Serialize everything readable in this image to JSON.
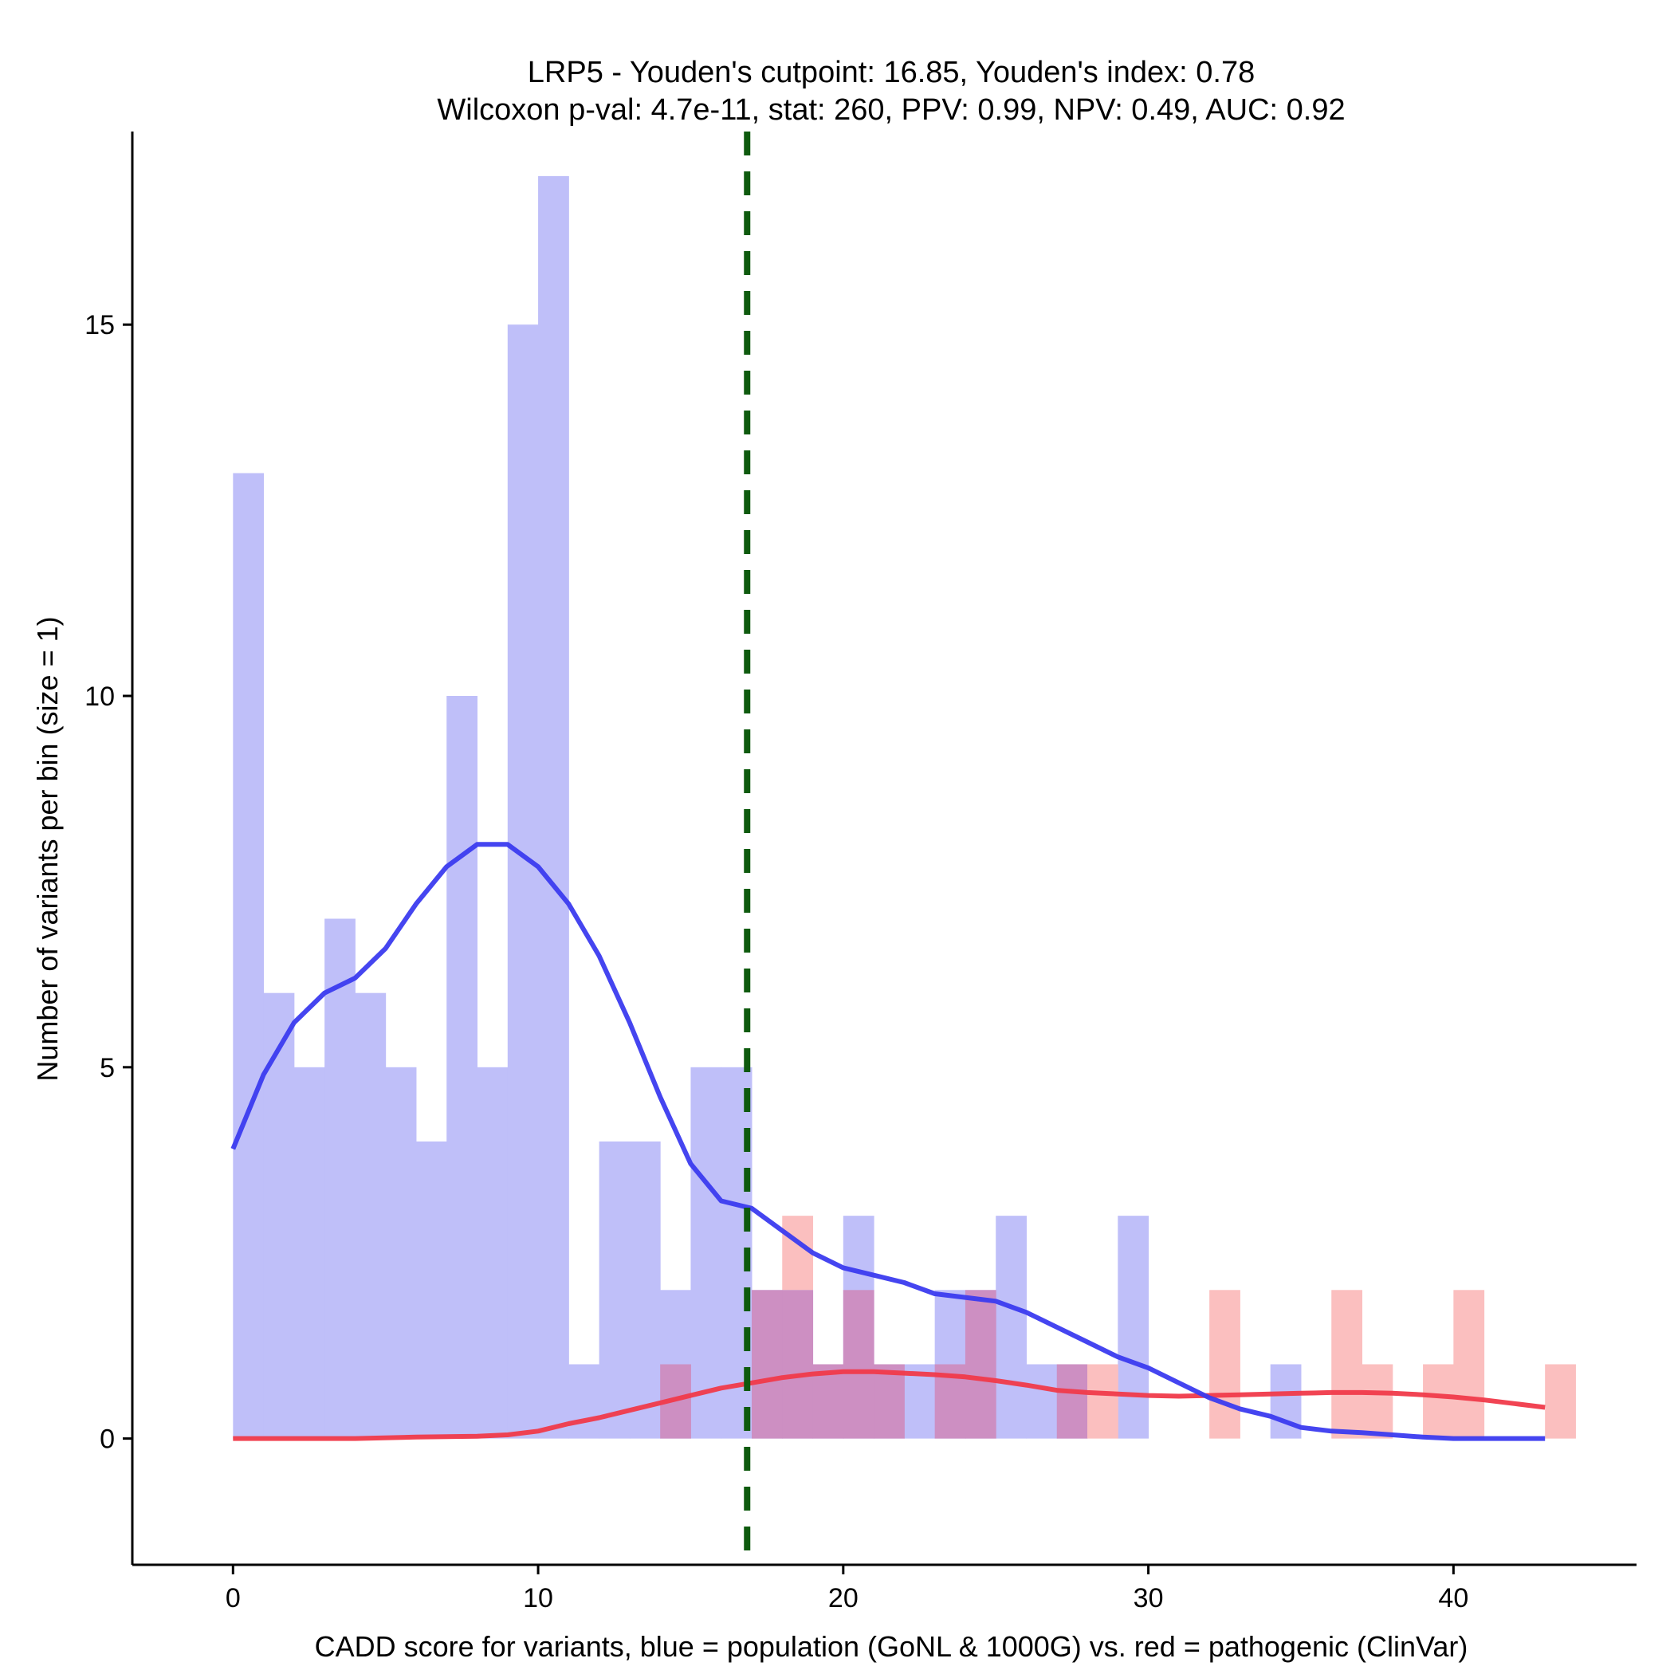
{
  "chart_data": {
    "type": "histogram",
    "title_line1": "LRP5 - Youden's cutpoint: 16.85, Youden's index: 0.78",
    "title_line2": "Wilcoxon p-val: 4.7e-11, stat: 260, PPV: 0.99, NPV: 0.49, AUC: 0.92",
    "xlabel": "CADD score for variants, blue = population (GoNL & 1000G) vs. red = pathogenic (ClinVar)",
    "ylabel": "Number of variants per bin (size = 1)",
    "xlim": [
      -3.3,
      46
    ],
    "ylim": [
      -1.7,
      17.6
    ],
    "x_ticks": [
      0,
      10,
      20,
      30,
      40
    ],
    "x_tick_labels": [
      "0",
      "10",
      "20",
      "30",
      "40"
    ],
    "y_ticks": [
      0,
      5,
      10,
      15
    ],
    "y_tick_labels": [
      "0",
      "5",
      "10",
      "15"
    ],
    "bin_size": 1,
    "cutpoint": 16.85,
    "colors": {
      "population_bar": "#bfbff9",
      "pathogenic_bar": "#fbbfbf",
      "overlap_bar": "#cd8fc2",
      "population_line": "#3b3bef",
      "pathogenic_line": "#f03a4a",
      "cutpoint_line": "#0e5a0e",
      "axis": "#000000"
    },
    "series": [
      {
        "name": "population (GoNL & 1000G)",
        "bins": [
          {
            "x0": 0,
            "count": 13
          },
          {
            "x0": 1,
            "count": 6
          },
          {
            "x0": 2,
            "count": 5
          },
          {
            "x0": 3,
            "count": 7
          },
          {
            "x0": 4,
            "count": 6
          },
          {
            "x0": 5,
            "count": 5
          },
          {
            "x0": 6,
            "count": 4
          },
          {
            "x0": 7,
            "count": 10
          },
          {
            "x0": 8,
            "count": 5
          },
          {
            "x0": 9,
            "count": 15
          },
          {
            "x0": 10,
            "count": 17
          },
          {
            "x0": 11,
            "count": 1
          },
          {
            "x0": 12,
            "count": 4
          },
          {
            "x0": 13,
            "count": 4
          },
          {
            "x0": 14,
            "count": 2
          },
          {
            "x0": 15,
            "count": 5
          },
          {
            "x0": 16,
            "count": 5
          },
          {
            "x0": 17,
            "count": 2
          },
          {
            "x0": 18,
            "count": 2
          },
          {
            "x0": 19,
            "count": 1
          },
          {
            "x0": 20,
            "count": 3
          },
          {
            "x0": 21,
            "count": 1
          },
          {
            "x0": 22,
            "count": 1
          },
          {
            "x0": 23,
            "count": 2
          },
          {
            "x0": 24,
            "count": 2
          },
          {
            "x0": 25,
            "count": 3
          },
          {
            "x0": 26,
            "count": 1
          },
          {
            "x0": 27,
            "count": 1
          },
          {
            "x0": 29,
            "count": 3
          },
          {
            "x0": 34,
            "count": 1
          }
        ],
        "density_curve": [
          [
            0,
            3.9
          ],
          [
            1,
            4.9
          ],
          [
            2,
            5.6
          ],
          [
            3,
            6.0
          ],
          [
            4,
            6.2
          ],
          [
            5,
            6.6
          ],
          [
            6,
            7.2
          ],
          [
            7,
            7.7
          ],
          [
            8,
            8.0
          ],
          [
            9,
            8.0
          ],
          [
            10,
            7.7
          ],
          [
            11,
            7.2
          ],
          [
            12,
            6.5
          ],
          [
            13,
            5.6
          ],
          [
            14,
            4.6
          ],
          [
            15,
            3.7
          ],
          [
            16,
            3.2
          ],
          [
            17,
            3.1
          ],
          [
            18,
            2.8
          ],
          [
            19,
            2.5
          ],
          [
            20,
            2.3
          ],
          [
            21,
            2.2
          ],
          [
            22,
            2.1
          ],
          [
            23,
            1.95
          ],
          [
            24,
            1.9
          ],
          [
            25,
            1.85
          ],
          [
            26,
            1.7
          ],
          [
            27,
            1.5
          ],
          [
            28,
            1.3
          ],
          [
            29,
            1.1
          ],
          [
            30,
            0.95
          ],
          [
            31,
            0.75
          ],
          [
            32,
            0.55
          ],
          [
            33,
            0.4
          ],
          [
            34,
            0.3
          ],
          [
            35,
            0.15
          ],
          [
            36,
            0.1
          ],
          [
            37,
            0.08
          ],
          [
            38,
            0.05
          ],
          [
            39,
            0.02
          ],
          [
            40,
            0.0
          ],
          [
            41,
            0.0
          ],
          [
            42,
            0.0
          ],
          [
            43,
            0.0
          ]
        ]
      },
      {
        "name": "pathogenic (ClinVar)",
        "bins": [
          {
            "x0": 14,
            "count": 1
          },
          {
            "x0": 17,
            "count": 2
          },
          {
            "x0": 18,
            "count": 3
          },
          {
            "x0": 19,
            "count": 1
          },
          {
            "x0": 20,
            "count": 2
          },
          {
            "x0": 21,
            "count": 1
          },
          {
            "x0": 23,
            "count": 1
          },
          {
            "x0": 24,
            "count": 2
          },
          {
            "x0": 27,
            "count": 1
          },
          {
            "x0": 28,
            "count": 1
          },
          {
            "x0": 32,
            "count": 2
          },
          {
            "x0": 36,
            "count": 2
          },
          {
            "x0": 37,
            "count": 1
          },
          {
            "x0": 39,
            "count": 1
          },
          {
            "x0": 40,
            "count": 2
          },
          {
            "x0": 43,
            "count": 1
          }
        ],
        "density_curve": [
          [
            0,
            0.0
          ],
          [
            2,
            0.0
          ],
          [
            4,
            0.0
          ],
          [
            6,
            0.02
          ],
          [
            8,
            0.03
          ],
          [
            9,
            0.05
          ],
          [
            10,
            0.1
          ],
          [
            11,
            0.2
          ],
          [
            12,
            0.28
          ],
          [
            13,
            0.38
          ],
          [
            14,
            0.48
          ],
          [
            15,
            0.58
          ],
          [
            16,
            0.68
          ],
          [
            17,
            0.75
          ],
          [
            18,
            0.82
          ],
          [
            19,
            0.87
          ],
          [
            20,
            0.9
          ],
          [
            21,
            0.9
          ],
          [
            22,
            0.88
          ],
          [
            23,
            0.86
          ],
          [
            24,
            0.83
          ],
          [
            25,
            0.78
          ],
          [
            26,
            0.72
          ],
          [
            27,
            0.65
          ],
          [
            28,
            0.62
          ],
          [
            29,
            0.6
          ],
          [
            30,
            0.58
          ],
          [
            31,
            0.57
          ],
          [
            32,
            0.58
          ],
          [
            33,
            0.59
          ],
          [
            34,
            0.6
          ],
          [
            35,
            0.61
          ],
          [
            36,
            0.62
          ],
          [
            37,
            0.62
          ],
          [
            38,
            0.61
          ],
          [
            39,
            0.59
          ],
          [
            40,
            0.56
          ],
          [
            41,
            0.52
          ],
          [
            42,
            0.47
          ],
          [
            43,
            0.42
          ]
        ]
      }
    ]
  }
}
